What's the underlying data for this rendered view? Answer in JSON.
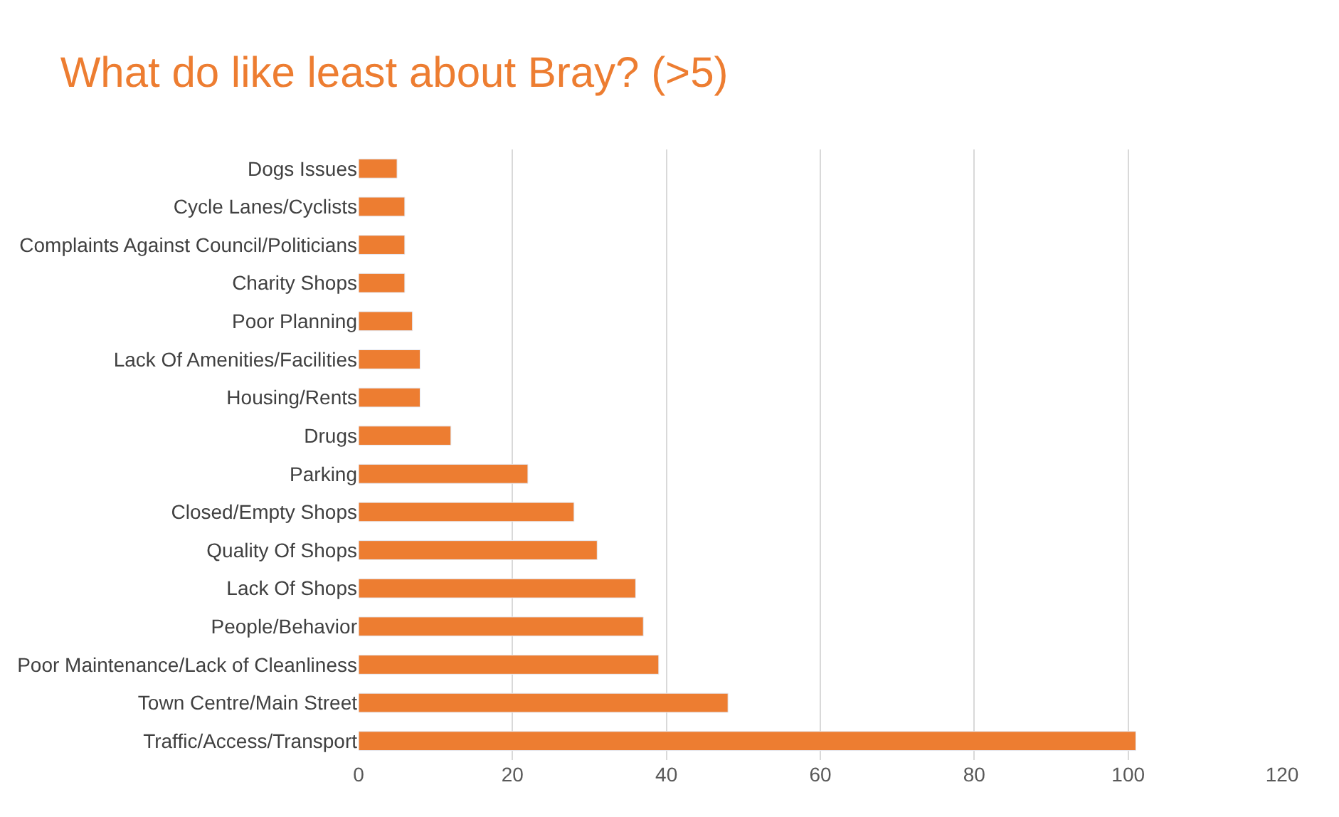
{
  "chart_data": {
    "type": "bar",
    "orientation": "horizontal",
    "title": "What do like least about Bray? (>5)",
    "categories": [
      "Dogs Issues",
      "Cycle Lanes/Cyclists",
      "Complaints Against Council/Politicians",
      "Charity Shops",
      "Poor Planning",
      "Lack Of Amenities/Facilities",
      "Housing/Rents",
      "Drugs",
      "Parking",
      "Closed/Empty Shops",
      "Quality Of Shops",
      "Lack Of Shops",
      "People/Behavior",
      "Poor Maintenance/Lack of Cleanliness",
      "Town Centre/Main Street",
      "Traffic/Access/Transport"
    ],
    "values": [
      5,
      6,
      6,
      6,
      7,
      8,
      8,
      12,
      22,
      28,
      31,
      36,
      37,
      39,
      48,
      101
    ],
    "color": "#ed7d31",
    "xlim": [
      0,
      120
    ],
    "xticks": [
      0,
      20,
      40,
      60,
      80,
      100,
      120
    ],
    "grid": "x",
    "legend": false
  }
}
